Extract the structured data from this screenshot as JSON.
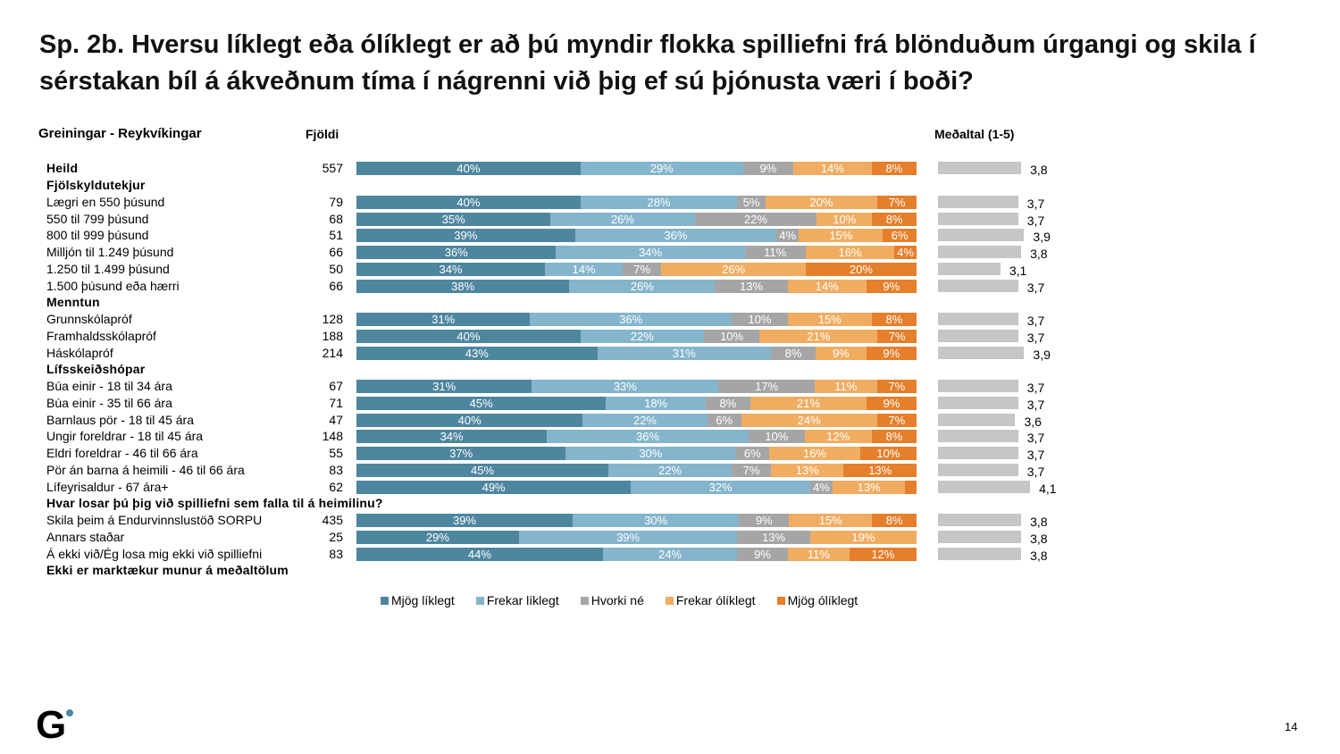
{
  "title": "Sp. 2b. Hversu líklegt eða ólíklegt er að þú myndir flokka spilliefni frá blönduðum úrgangi og skila í sérstakan bíl á ákveðnum tíma í nágrenni við þig ef sú þjónusta væri í boði?",
  "headers": {
    "group": "Greiningar - Reykvíkingar",
    "count": "Fjöldi",
    "mean": "Meðaltal (1-5)"
  },
  "footnote": "Ekki er marktækur munur á meðaltölum",
  "page_number": "14",
  "logo": "G",
  "colors": {
    "mjog_liklegt": "#4e86a0",
    "frekar_liklegt": "#84b5cc",
    "hvorki": "#a5a5a5",
    "frekar_oliklegt": "#f0ad62",
    "mjog_oliklegt": "#e57f2b",
    "mean_bar": "#c6c6c6"
  },
  "chart_data": {
    "type": "bar",
    "subtype": "stacked-horizontal-100",
    "title": "Sp. 2b. Hversu líklegt eða ólíklegt er að þú myndir flokka spilliefni frá blönduðum úrgangi og skila í sérstakan bíl á ákveðnum tíma í nágrenni við þig ef sú þjónusta væri í boði?",
    "legend": [
      "Mjög líklegt",
      "Frekar líklegt",
      "Hvorki né",
      "Frekar ólíklegt",
      "Mjög ólíklegt"
    ],
    "legend_position": "bottom",
    "mean_scale": [
      1,
      5
    ],
    "rows": [
      {
        "label": "Heild",
        "bold": true,
        "n": "557",
        "values": [
          40,
          29,
          9,
          14,
          8
        ],
        "labels": [
          "40%",
          "29%",
          "9%",
          "14%",
          "8%"
        ],
        "mean": "3,8",
        "mean_value": 3.8
      },
      {
        "label": "Fjölskyldutekjur",
        "bold": true,
        "header": true
      },
      {
        "label": "Lægri en 550 þúsund",
        "n": "79",
        "values": [
          40,
          28,
          5,
          20,
          7
        ],
        "labels": [
          "40%",
          "28%",
          "5%",
          "20%",
          "7%"
        ],
        "mean": "3,7",
        "mean_value": 3.7
      },
      {
        "label": "550 til 799 þúsund",
        "n": "68",
        "values": [
          35,
          26,
          22,
          10,
          8
        ],
        "labels": [
          "35%",
          "26%",
          "22%",
          "10%",
          "8%"
        ],
        "mean": "3,7",
        "mean_value": 3.7
      },
      {
        "label": "800 til 999 þúsund",
        "n": "51",
        "values": [
          39,
          36,
          4,
          15,
          6
        ],
        "labels": [
          "39%",
          "36%",
          "4%",
          "15%",
          "6%"
        ],
        "mean": "3,9",
        "mean_value": 3.9
      },
      {
        "label": "Milljón til 1.249 þúsund",
        "n": "66",
        "values": [
          36,
          34,
          11,
          16,
          4
        ],
        "labels": [
          "36%",
          "34%",
          "11%",
          "16%",
          "4%"
        ],
        "mean": "3,8",
        "mean_value": 3.8
      },
      {
        "label": "1.250 til 1.499 þúsund",
        "n": "50",
        "values": [
          34,
          14,
          7,
          26,
          20
        ],
        "labels": [
          "34%",
          "14%",
          "7%",
          "26%",
          "20%"
        ],
        "mean": "3,1",
        "mean_value": 3.1
      },
      {
        "label": "1.500 þúsund eða hærri",
        "n": "66",
        "values": [
          38,
          26,
          13,
          14,
          9
        ],
        "labels": [
          "38%",
          "26%",
          "13%",
          "14%",
          "9%"
        ],
        "mean": "3,7",
        "mean_value": 3.7
      },
      {
        "label": "Menntun",
        "bold": true,
        "header": true
      },
      {
        "label": "Grunnskólapróf",
        "n": "128",
        "values": [
          31,
          36,
          10,
          15,
          8
        ],
        "labels": [
          "31%",
          "36%",
          "10%",
          "15%",
          "8%"
        ],
        "mean": "3,7",
        "mean_value": 3.7
      },
      {
        "label": "Framhaldsskólapróf",
        "n": "188",
        "values": [
          40,
          22,
          10,
          21,
          7
        ],
        "labels": [
          "40%",
          "22%",
          "10%",
          "21%",
          "7%"
        ],
        "mean": "3,7",
        "mean_value": 3.7
      },
      {
        "label": "Háskólapróf",
        "n": "214",
        "values": [
          43,
          31,
          8,
          9,
          9
        ],
        "labels": [
          "43%",
          "31%",
          "8%",
          "9%",
          "9%"
        ],
        "mean": "3,9",
        "mean_value": 3.9
      },
      {
        "label": "Lífsskeiðshópar",
        "bold": true,
        "header": true
      },
      {
        "label": "Búa einir - 18 til 34 ára",
        "n": "67",
        "values": [
          31,
          33,
          17,
          11,
          7
        ],
        "labels": [
          "31%",
          "33%",
          "17%",
          "11%",
          "7%"
        ],
        "mean": "3,7",
        "mean_value": 3.7
      },
      {
        "label": "Búa einir - 35 til 66 ára",
        "n": "71",
        "values": [
          45,
          18,
          8,
          21,
          9
        ],
        "labels": [
          "45%",
          "18%",
          "8%",
          "21%",
          "9%"
        ],
        "mean": "3,7",
        "mean_value": 3.7
      },
      {
        "label": "Barnlaus pör - 18 til 45 ára",
        "n": "47",
        "values": [
          40,
          22,
          6,
          24,
          7
        ],
        "labels": [
          "40%",
          "22%",
          "6%",
          "24%",
          "7%"
        ],
        "mean": "3,6",
        "mean_value": 3.6
      },
      {
        "label": "Ungir foreldrar - 18 til 45 ára",
        "n": "148",
        "values": [
          34,
          36,
          10,
          12,
          8
        ],
        "labels": [
          "34%",
          "36%",
          "10%",
          "12%",
          "8%"
        ],
        "mean": "3,7",
        "mean_value": 3.7
      },
      {
        "label": "Eldri foreldrar - 46 til 66 ára",
        "n": "55",
        "values": [
          37,
          30,
          6,
          16,
          10
        ],
        "labels": [
          "37%",
          "30%",
          "6%",
          "16%",
          "10%"
        ],
        "mean": "3,7",
        "mean_value": 3.7
      },
      {
        "label": "Pör án barna á heimili - 46 til 66 ára",
        "n": "83",
        "values": [
          45,
          22,
          7,
          13,
          13
        ],
        "labels": [
          "45%",
          "22%",
          "7%",
          "13%",
          "13%"
        ],
        "mean": "3,7",
        "mean_value": 3.7
      },
      {
        "label": "Lífeyrisaldur - 67 ára+",
        "n": "62",
        "values": [
          49,
          32,
          4,
          13,
          2
        ],
        "labels": [
          "49%",
          "32%",
          "4%",
          "13%",
          ""
        ],
        "mean": "4,1",
        "mean_value": 4.1
      },
      {
        "label": "Hvar losar þú þig við spilliefni sem falla til á heimilinu?",
        "bold": true,
        "header": true
      },
      {
        "label": "Skila þeim á Endurvinnslustöð SORPU",
        "n": "435",
        "values": [
          39,
          30,
          9,
          15,
          8
        ],
        "labels": [
          "39%",
          "30%",
          "9%",
          "15%",
          "8%"
        ],
        "mean": "3,8",
        "mean_value": 3.8
      },
      {
        "label": "Annars staðar",
        "n": "25",
        "values": [
          29,
          39,
          13,
          19,
          0
        ],
        "labels": [
          "29%",
          "39%",
          "13%",
          "19%",
          ""
        ],
        "mean": "3,8",
        "mean_value": 3.8
      },
      {
        "label": "Á ekki við/Ég losa mig ekki við spilliefni",
        "n": "83",
        "values": [
          44,
          24,
          9,
          11,
          12
        ],
        "labels": [
          "44%",
          "24%",
          "9%",
          "11%",
          "12%"
        ],
        "mean": "3,8",
        "mean_value": 3.8
      }
    ]
  }
}
